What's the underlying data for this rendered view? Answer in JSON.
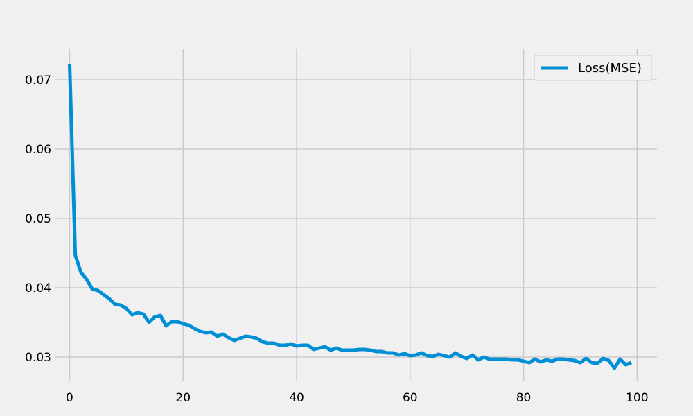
{
  "chart_data": {
    "type": "line",
    "title": "",
    "xlabel": "",
    "ylabel": "",
    "xlim": [
      -2.5,
      103.5
    ],
    "ylim": [
      0.0265,
      0.0745
    ],
    "grid": true,
    "legend_position": "top-right",
    "x_ticks": [
      0,
      20,
      40,
      60,
      80,
      100
    ],
    "x_tick_labels": [
      "0",
      "20",
      "40",
      "60",
      "80",
      "100"
    ],
    "y_ticks": [
      0.03,
      0.04,
      0.05,
      0.06,
      0.07
    ],
    "y_tick_labels": [
      "0.03",
      "0.04",
      "0.05",
      "0.06",
      "0.07"
    ],
    "series": [
      {
        "name": "Loss(MSE)",
        "color": "#008fd5",
        "x": [
          0,
          1,
          2,
          3,
          4,
          5,
          6,
          7,
          8,
          9,
          10,
          11,
          12,
          13,
          14,
          15,
          16,
          17,
          18,
          19,
          20,
          21,
          22,
          23,
          24,
          25,
          26,
          27,
          28,
          29,
          30,
          31,
          32,
          33,
          34,
          35,
          36,
          37,
          38,
          39,
          40,
          41,
          42,
          43,
          44,
          45,
          46,
          47,
          48,
          49,
          50,
          51,
          52,
          53,
          54,
          55,
          56,
          57,
          58,
          59,
          60,
          61,
          62,
          63,
          64,
          65,
          66,
          67,
          68,
          69,
          70,
          71,
          72,
          73,
          74,
          75,
          76,
          77,
          78,
          79,
          80,
          81,
          82,
          83,
          84,
          85,
          86,
          87,
          88,
          89,
          90,
          91,
          92,
          93,
          94,
          95,
          96,
          97,
          98,
          99
        ],
        "values": [
          0.0723,
          0.0447,
          0.0422,
          0.0412,
          0.0398,
          0.0396,
          0.039,
          0.0384,
          0.0376,
          0.0375,
          0.037,
          0.0361,
          0.0364,
          0.0362,
          0.035,
          0.0358,
          0.036,
          0.0345,
          0.0351,
          0.0351,
          0.0348,
          0.0346,
          0.0341,
          0.0337,
          0.0335,
          0.0336,
          0.033,
          0.0333,
          0.0328,
          0.0324,
          0.0327,
          0.033,
          0.0329,
          0.0327,
          0.0322,
          0.032,
          0.032,
          0.0317,
          0.0317,
          0.0319,
          0.0316,
          0.0317,
          0.0317,
          0.0311,
          0.0313,
          0.0315,
          0.031,
          0.0313,
          0.031,
          0.031,
          0.031,
          0.0311,
          0.0311,
          0.031,
          0.0308,
          0.0308,
          0.0306,
          0.0306,
          0.0303,
          0.0305,
          0.0302,
          0.0303,
          0.0306,
          0.0302,
          0.0301,
          0.0304,
          0.0302,
          0.03,
          0.0306,
          0.0301,
          0.0298,
          0.0303,
          0.0296,
          0.03,
          0.0297,
          0.0297,
          0.0297,
          0.0297,
          0.0296,
          0.0296,
          0.0294,
          0.0292,
          0.0297,
          0.0293,
          0.0296,
          0.0294,
          0.0297,
          0.0297,
          0.0296,
          0.0295,
          0.0292,
          0.0298,
          0.0292,
          0.0291,
          0.0298,
          0.0295,
          0.0284,
          0.0297,
          0.0289,
          0.0292
        ]
      }
    ]
  }
}
